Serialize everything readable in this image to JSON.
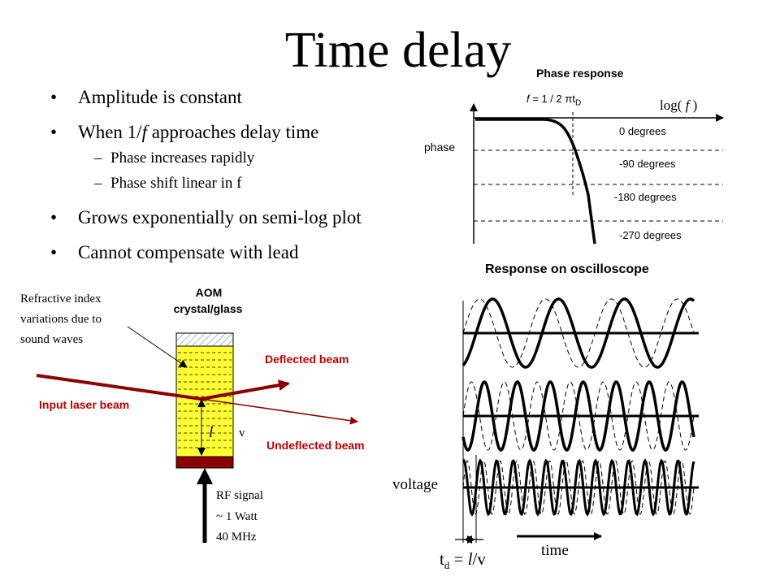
{
  "title": "Time delay",
  "bullets": {
    "b1": "Amplitude is constant",
    "b2_pre": "When 1/",
    "b2_f": "f",
    "b2_post": " approaches delay time",
    "s1": "Phase increases rapidly",
    "s2": "Phase shift linear in f",
    "b3": "Grows exponentially on semi-log plot",
    "b4": "Cannot compensate with lead"
  },
  "phase_plot": {
    "title": "Phase response",
    "marker_f": "f",
    "marker_eq": " = 1 / 2 πt",
    "marker_sub": "D",
    "xlabel_pre": "log( ",
    "xlabel_f": "f",
    "xlabel_post": " )",
    "ylabel": "phase",
    "levels": [
      "0 degrees",
      "-90 degrees",
      "-180 degrees",
      "-270 degrees"
    ]
  },
  "oscilloscope": {
    "title": "Response on oscilloscope",
    "ylabel": "voltage",
    "xlabel": "time",
    "td_t": "t",
    "td_sub": "d",
    "td_eq": " = ",
    "td_l": "l",
    "td_v": "/v",
    "traces": [
      {
        "cycles": 3.5
      },
      {
        "cycles": 7
      },
      {
        "cycles": 14
      }
    ]
  },
  "aom": {
    "title_line1": "AOM",
    "title_line2": "crystal/glass",
    "note_line1": "Refractive index",
    "note_line2": "variations due to",
    "note_line3": "sound waves",
    "deflected": "Deflected  beam",
    "input": "Input laser beam",
    "undeflected": "Undeflected  beam",
    "l_label": "l",
    "v_label": "v",
    "rf_line1": "RF signal",
    "rf_line2": "~ 1 Watt",
    "rf_line3": "40 MHz"
  },
  "colors": {
    "beam": "#8b0000",
    "crystal": "#ffff33",
    "transducer": "#8b0000",
    "label_red": "#c00000"
  }
}
